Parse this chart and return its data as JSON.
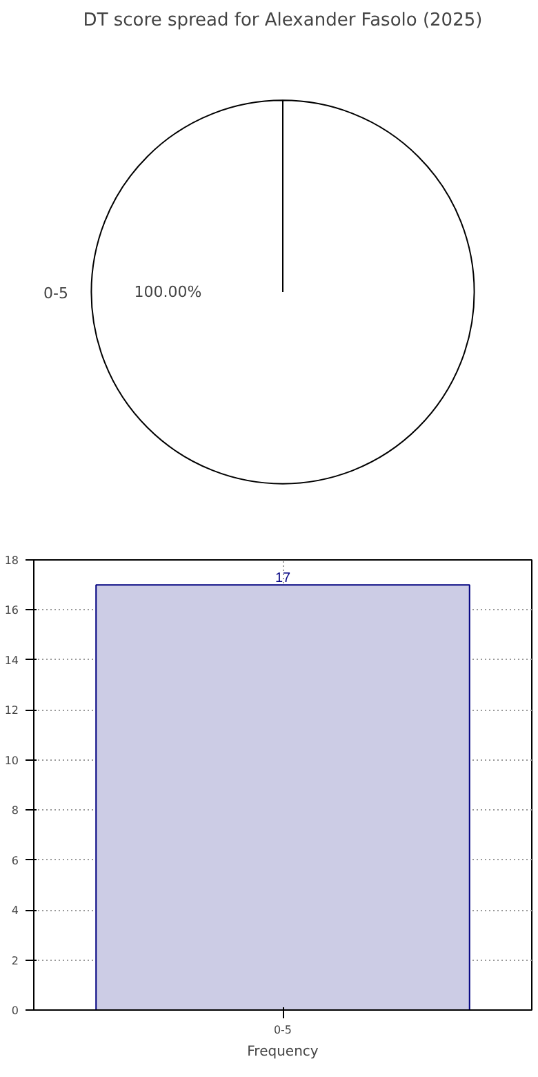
{
  "chart_data": [
    {
      "type": "pie",
      "title": "DT score spread for Alexander Fasolo (2025)",
      "categories": [
        "0-5"
      ],
      "values": [
        100
      ],
      "colors": [
        "#ffffff"
      ],
      "value_labels": [
        "100.00%"
      ]
    },
    {
      "type": "bar",
      "categories": [
        "0-5"
      ],
      "values": [
        17
      ],
      "color": "#ccccE5",
      "xlabel": "Frequency",
      "ylim": [
        0,
        18
      ],
      "yticks": [
        0,
        2,
        4,
        6,
        8,
        10,
        12,
        14,
        16,
        18
      ],
      "grid": true,
      "data_labels": true
    }
  ]
}
